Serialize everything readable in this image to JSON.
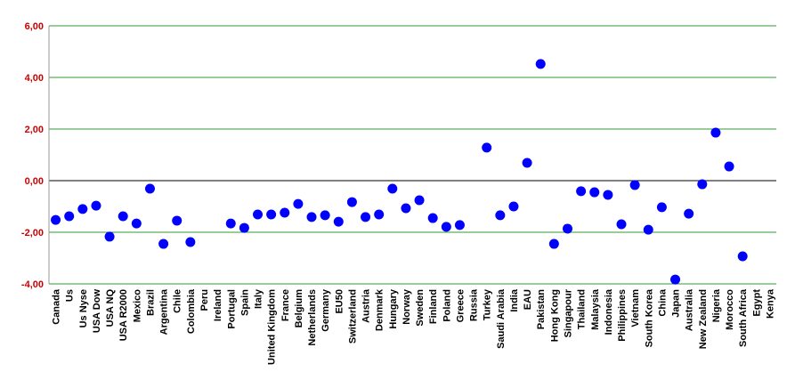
{
  "chart_data": {
    "type": "scatter",
    "categories": [
      "Canada",
      "Us",
      "Us Nyse",
      "USA Dow",
      "USA NQ",
      "USA R2000",
      "Mexico",
      "Brazil",
      "Argentina",
      "Chile",
      "Colombia",
      "Peru",
      "Ireland",
      "Portugal",
      "Spain",
      "Italy",
      "United Kingdom",
      "France",
      "Belgium",
      "Netherlands",
      "Germany",
      "EU50",
      "Switzerland",
      "Austria",
      "Denmark",
      "Hungary",
      "Norway",
      "Sweden",
      "Finland",
      "Poland",
      "Greece",
      "Russia",
      "Turkey",
      "Saudi Arabia",
      "India",
      "EAU",
      "Pakistan",
      "Hong Kong",
      "Singapour",
      "Thailand",
      "Malaysia",
      "Indonesia",
      "Philippines",
      "Vietnam",
      "South Korea",
      "China",
      "Japan",
      "Australia",
      "New Zealand",
      "Nigeria",
      "Morocco",
      "South Africa",
      "Egypt",
      "Kenya"
    ],
    "series": [
      {
        "color": "#0000ff",
        "values": [
          -1.52,
          -1.38,
          -1.1,
          -0.97,
          -2.17,
          -1.38,
          -1.66,
          -0.31,
          -2.45,
          -1.55,
          -2.38,
          null,
          null,
          -1.66,
          -1.83,
          -1.31,
          -1.31,
          -1.24,
          -0.9,
          -1.41,
          -1.34,
          -1.59,
          -0.83,
          -1.41,
          -1.31,
          -0.31,
          -1.07,
          -0.76,
          -1.45,
          -1.79,
          -1.72,
          null,
          1.28,
          -1.34,
          -1.0,
          0.69,
          4.52,
          -2.45,
          -1.86,
          -0.41,
          -0.45,
          -0.55,
          -1.69,
          -0.17,
          -1.9,
          -1.03,
          -3.83,
          -1.28,
          -0.14,
          1.86,
          0.55,
          -2.93,
          null,
          null
        ]
      }
    ],
    "ylim": [
      -4,
      6
    ],
    "yticks": [
      {
        "value": -4,
        "label": "-4,00"
      },
      {
        "value": -2,
        "label": "-2,00"
      },
      {
        "value": 0,
        "label": "0,00"
      },
      {
        "value": 2,
        "label": "2,00"
      },
      {
        "value": 4,
        "label": "4,00"
      },
      {
        "value": 6,
        "label": "6,00"
      }
    ],
    "grid": true,
    "grid_color": "#339933",
    "zero_line_color": "#000000"
  }
}
